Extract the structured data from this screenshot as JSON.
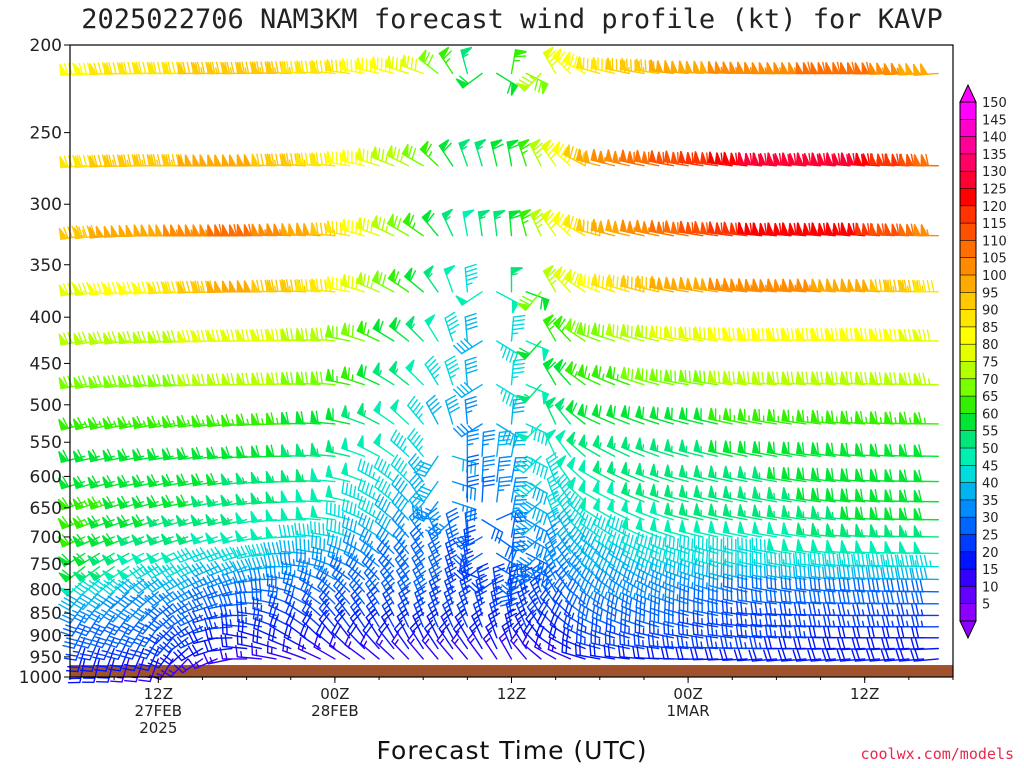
{
  "chart_data": {
    "type": "wind-barb-time-height",
    "title": "2025022706 NAM3KM forecast wind profile (kt) for KAVP",
    "xlabel": "Forecast Time (UTC)",
    "ylabel": "",
    "units": "kt",
    "y_scale": "log-pressure",
    "y_inverted": true,
    "ylim": [
      1000,
      200
    ],
    "yticks": [
      200,
      250,
      300,
      350,
      400,
      450,
      500,
      550,
      600,
      650,
      700,
      750,
      800,
      850,
      900,
      950,
      1000
    ],
    "x_forecast_hours": [
      0,
      60
    ],
    "x_step_hours": 1,
    "xticks": [
      {
        "hour": 6,
        "lines": [
          "12Z",
          "27FEB",
          "2025"
        ]
      },
      {
        "hour": 18,
        "lines": [
          "00Z",
          "28FEB"
        ]
      },
      {
        "hour": 30,
        "lines": [
          "12Z"
        ]
      },
      {
        "hour": 42,
        "lines": [
          "00Z",
          "1MAR"
        ]
      },
      {
        "hour": 54,
        "lines": [
          "12Z"
        ]
      }
    ],
    "levels_hpa": [
      215,
      272,
      325,
      375,
      425,
      475,
      525,
      570,
      608,
      640,
      670,
      700,
      730,
      755,
      780,
      805,
      830,
      855,
      880,
      905,
      930,
      955
    ],
    "terrain_surface_hpa": 970,
    "colorbar": {
      "min": 5,
      "max": 150,
      "step": 5,
      "labels": [
        150,
        145,
        140,
        135,
        130,
        125,
        120,
        115,
        110,
        105,
        100,
        95,
        90,
        85,
        80,
        75,
        70,
        65,
        60,
        55,
        50,
        45,
        40,
        35,
        30,
        25,
        20,
        15,
        10,
        5
      ],
      "colors": [
        "#ff00ff",
        "#ff00c8",
        "#ff0096",
        "#ff0064",
        "#ff0032",
        "#ff0000",
        "#ff3200",
        "#ff5000",
        "#ff6e00",
        "#ff8c00",
        "#ffaa00",
        "#ffc800",
        "#ffe600",
        "#ffff00",
        "#e6ff00",
        "#b4ff00",
        "#78ff00",
        "#32f000",
        "#00e632",
        "#00e678",
        "#00f0b4",
        "#00dcdc",
        "#00b4f0",
        "#008cff",
        "#0064ff",
        "#003cff",
        "#0014ff",
        "#3200ff",
        "#6400ff",
        "#8c00ff"
      ]
    },
    "wind_field": {
      "description_key": "wind speed (kt) and direction (deg from) by level, via anchor table",
      "anchor_hours": [
        0,
        6,
        12,
        18,
        24,
        27,
        30,
        33,
        36,
        42,
        48,
        54,
        60
      ],
      "anchor_levels_hpa": [
        215,
        272,
        325,
        375,
        425,
        475,
        525,
        570,
        640,
        700,
        755,
        805,
        855,
        905,
        955
      ],
      "speed_kt": [
        [
          85,
          90,
          95,
          90,
          80,
          55,
          65,
          80,
          90,
          100,
          105,
          110,
          95
        ],
        [
          90,
          95,
          100,
          90,
          70,
          55,
          60,
          80,
          100,
          115,
          130,
          130,
          105
        ],
        [
          95,
          100,
          110,
          95,
          65,
          50,
          60,
          80,
          95,
          110,
          125,
          125,
          100
        ],
        [
          80,
          85,
          100,
          90,
          60,
          45,
          55,
          75,
          85,
          100,
          105,
          100,
          90
        ],
        [
          75,
          75,
          80,
          75,
          55,
          40,
          45,
          65,
          70,
          80,
          85,
          85,
          80
        ],
        [
          70,
          70,
          75,
          70,
          50,
          40,
          45,
          60,
          65,
          70,
          75,
          75,
          75
        ],
        [
          65,
          65,
          65,
          60,
          45,
          35,
          40,
          55,
          60,
          60,
          65,
          65,
          65
        ],
        [
          60,
          60,
          60,
          55,
          45,
          35,
          40,
          50,
          55,
          55,
          60,
          60,
          60
        ],
        [
          65,
          60,
          55,
          50,
          40,
          30,
          35,
          45,
          50,
          55,
          55,
          60,
          60
        ],
        [
          65,
          55,
          50,
          45,
          35,
          30,
          30,
          40,
          45,
          50,
          50,
          55,
          55
        ],
        [
          60,
          45,
          40,
          35,
          30,
          25,
          30,
          35,
          40,
          45,
          45,
          45,
          45
        ],
        [
          40,
          35,
          30,
          30,
          30,
          25,
          25,
          30,
          35,
          35,
          30,
          30,
          30
        ],
        [
          30,
          30,
          25,
          25,
          25,
          25,
          25,
          25,
          30,
          30,
          25,
          25,
          25
        ],
        [
          25,
          25,
          20,
          20,
          20,
          20,
          20,
          20,
          25,
          25,
          25,
          20,
          20
        ],
        [
          20,
          15,
          15,
          15,
          15,
          15,
          15,
          15,
          20,
          20,
          20,
          20,
          20
        ]
      ],
      "direction_deg": [
        [
          265,
          270,
          270,
          275,
          290,
          345,
          10,
          330,
          285,
          275,
          270,
          270,
          265
        ],
        [
          265,
          270,
          270,
          275,
          300,
          340,
          350,
          325,
          285,
          280,
          275,
          275,
          270
        ],
        [
          260,
          270,
          270,
          275,
          305,
          350,
          355,
          325,
          285,
          280,
          275,
          275,
          270
        ],
        [
          260,
          265,
          270,
          275,
          310,
          355,
          0,
          330,
          290,
          280,
          275,
          275,
          270
        ],
        [
          260,
          265,
          270,
          275,
          315,
          355,
          5,
          330,
          290,
          280,
          275,
          275,
          270
        ],
        [
          260,
          265,
          270,
          275,
          315,
          355,
          5,
          330,
          295,
          280,
          275,
          275,
          270
        ],
        [
          255,
          260,
          265,
          275,
          320,
          355,
          5,
          335,
          295,
          285,
          280,
          275,
          270
        ],
        [
          255,
          260,
          265,
          275,
          320,
          0,
          10,
          335,
          300,
          285,
          280,
          275,
          270
        ],
        [
          250,
          255,
          260,
          275,
          325,
          0,
          10,
          340,
          300,
          285,
          280,
          275,
          270
        ],
        [
          245,
          250,
          255,
          280,
          325,
          355,
          10,
          340,
          305,
          285,
          280,
          275,
          270
        ],
        [
          230,
          240,
          250,
          290,
          330,
          350,
          5,
          335,
          310,
          290,
          280,
          275,
          270
        ],
        [
          220,
          230,
          260,
          310,
          335,
          345,
          355,
          330,
          310,
          290,
          280,
          275,
          270
        ],
        [
          210,
          220,
          270,
          320,
          340,
          340,
          350,
          320,
          300,
          285,
          275,
          270,
          270
        ],
        [
          200,
          210,
          280,
          320,
          335,
          330,
          345,
          310,
          290,
          280,
          275,
          270,
          270
        ],
        [
          190,
          200,
          270,
          300,
          320,
          320,
          330,
          300,
          280,
          270,
          265,
          265,
          265
        ]
      ],
      "suppressed_below_terrain": true
    }
  },
  "credit": "coolwx.com/models"
}
